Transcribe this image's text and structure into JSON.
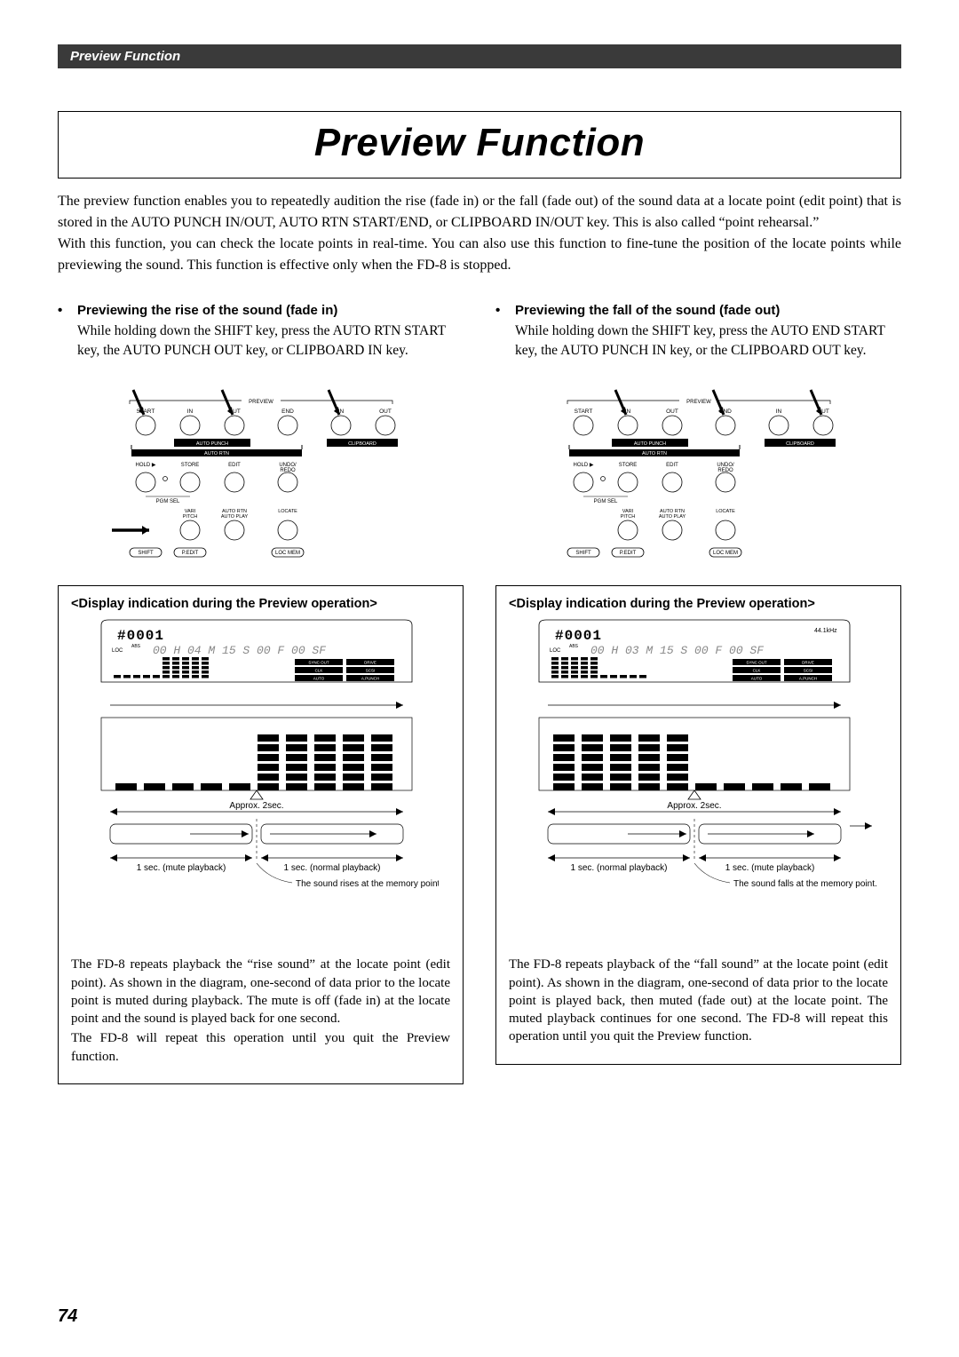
{
  "page": {
    "header": "Preview Function",
    "title": "Preview Function",
    "page_number": "74"
  },
  "intro": {
    "p1": "The preview function enables you to repeatedly audition the rise (fade in) or the fall (fade out) of the sound data at a locate point (edit point) that is stored in the AUTO PUNCH IN/OUT, AUTO RTN START/END, or CLIPBOARD IN/OUT key.  This is also called “point rehearsal.”",
    "p2": "With this function, you can check the locate points in real-time.  You can also use this function to fine-tune the position of the locate points while previewing the sound. This function is effective only when the FD-8 is stopped."
  },
  "left": {
    "bullet_title": "Previewing the rise of the sound (fade in)",
    "bullet_body": "While holding down the SHIFT key, press the AUTO RTN START key, the AUTO PUNCH OUT key, or CLIPBOARD IN key.",
    "box_title": "<Display indication during the Preview operation>",
    "box_body_1": "The FD-8 repeats playback the “rise sound” at the locate point (edit point).  As shown in the diagram, one-second of data prior to the locate point is muted during playback.  The mute is off (fade in) at the locate point and the sound is played back for one second.",
    "box_body_2": "The FD-8 will repeat this operation until you quit the Preview function."
  },
  "right": {
    "bullet_title": "Previewing the fall of the sound (fade out)",
    "bullet_body": "While holding down the SHIFT key, press the AUTO END START key, the AUTO PUNCH IN key, or the CLIPBOARD OUT key.",
    "box_title": "<Display indication during the Preview operation>",
    "box_body_1": "The FD-8 repeats playback of the “fall sound” at the locate point (edit point).  As shown in the diagram, one-second of data prior to the locate point is played back, then muted (fade out) at the locate point.  The muted playback continues for one second. The FD-8 will repeat this operation until you quit the Preview function."
  },
  "control_panel": {
    "top_labels": [
      "START",
      "IN",
      "OUT",
      "END",
      "IN",
      "OUT"
    ],
    "sect_labels": {
      "preview": "PREVIEW",
      "auto_punch": "AUTO PUNCH",
      "clipboard": "CLIPBOARD",
      "auto_rtn": "AUTO RTN"
    },
    "mid_labels": [
      "HOLD ▶",
      "STORE",
      "EDIT",
      "UNDO/\nREDO"
    ],
    "pgm_sel": "PGM SEL",
    "bot_labels": [
      "VARI\nPITCH",
      "AUTO RTN\nAUTO PLAY",
      "LOCATE"
    ],
    "pill_labels": [
      "SHIFT",
      "P.EDIT",
      "LOC MEM"
    ]
  },
  "lcd": {
    "prog_left": "#0001",
    "time_left": "00 H 04 M 15 S 00 F 00 SF",
    "prog_right": "#0001",
    "time_right": "00 H 03 M 15 S 00 F 00 SF",
    "loc": "LOC",
    "abs": "ABS",
    "khz": "44.1kHz",
    "badges": [
      "SYNC OUT",
      "DRIVE",
      "CLK",
      "SCSI",
      "AUTO",
      "A.PUNCH"
    ],
    "approx": "Approx. 2sec.",
    "mute": "1 sec. (mute playback)",
    "normal": "1 sec. (normal playback)",
    "rise_note": "The sound rises at the memory point.",
    "fall_note": "The sound falls at the memory point."
  },
  "left_arrows": [
    0,
    2,
    4
  ],
  "right_arrows": [
    1,
    3,
    5
  ],
  "colors": {
    "header_bg": "#3a3a3a",
    "text": "#000000",
    "bg": "#ffffff"
  }
}
